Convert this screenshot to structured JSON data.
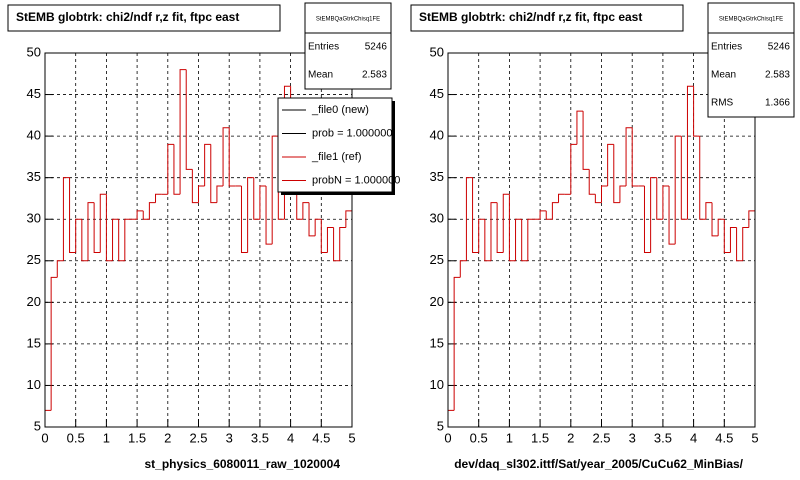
{
  "chart_data": [
    {
      "type": "histogram",
      "title": "StEMB globtrk: chi2/ndf r,z fit, ftpc east",
      "xlabel": "st_physics_6080011_raw_1020004",
      "bins": [
        0,
        0.1,
        0.2,
        0.3,
        0.4,
        0.5,
        0.6,
        0.7,
        0.8,
        0.9,
        1,
        1.1,
        1.2,
        1.3,
        1.4,
        1.5,
        1.6,
        1.7,
        1.8,
        1.9,
        2,
        2.1,
        2.2,
        2.3,
        2.4,
        2.5,
        2.6,
        2.7,
        2.8,
        2.9,
        3,
        3.1,
        3.2,
        3.3,
        3.4,
        3.5,
        3.6,
        3.7,
        3.8,
        3.9,
        4,
        4.1,
        4.2,
        4.3,
        4.4,
        4.5,
        4.6,
        4.7,
        4.8,
        4.9,
        5
      ],
      "values": [
        7,
        23,
        25,
        35,
        26,
        30,
        25,
        32,
        26,
        33,
        25,
        30,
        25,
        30,
        30,
        31,
        30,
        32,
        33,
        33,
        39,
        33,
        48,
        36,
        32,
        34,
        39,
        32,
        34,
        41,
        34,
        34,
        26,
        35,
        30,
        34,
        27,
        40,
        30,
        46,
        40,
        30,
        32,
        28,
        30,
        26,
        29,
        25,
        29,
        31
      ],
      "color": "#cc0000",
      "xlim": [
        0,
        5
      ],
      "ylim": [
        5,
        50
      ],
      "xticks": [
        0,
        0.5,
        1,
        1.5,
        2,
        2.5,
        3,
        3.5,
        4,
        4.5,
        5
      ],
      "yticks": [
        5,
        10,
        15,
        20,
        25,
        30,
        35,
        40,
        45,
        50
      ],
      "grid": true,
      "stats": {
        "name": "StEMBQaGtrkChisq1FE",
        "rows": [
          {
            "label": "Entries",
            "value": 5246
          },
          {
            "label": "Mean",
            "value": 2.583
          }
        ]
      },
      "legend": [
        {
          "label": "_file0 (new)",
          "color": "#000000"
        },
        {
          "label": "prob = 1.000000",
          "color": "#000000"
        },
        {
          "label": "_file1 (ref)",
          "color": "#cc0000"
        },
        {
          "label": "probN = 1.000000",
          "color": "#cc0000"
        }
      ]
    },
    {
      "type": "histogram",
      "title": "StEMB globtrk: chi2/ndf r,z fit, ftpc east",
      "xlabel": "dev/daq_sl302.ittf/Sat/year_2005/CuCu62_MinBias/",
      "bins": [
        0,
        0.1,
        0.2,
        0.3,
        0.4,
        0.5,
        0.6,
        0.7,
        0.8,
        0.9,
        1,
        1.1,
        1.2,
        1.3,
        1.4,
        1.5,
        1.6,
        1.7,
        1.8,
        1.9,
        2,
        2.1,
        2.2,
        2.3,
        2.4,
        2.5,
        2.6,
        2.7,
        2.8,
        2.9,
        3,
        3.1,
        3.2,
        3.3,
        3.4,
        3.5,
        3.6,
        3.7,
        3.8,
        3.9,
        4,
        4.1,
        4.2,
        4.3,
        4.4,
        4.5,
        4.6,
        4.7,
        4.8,
        4.9,
        5
      ],
      "values": [
        7,
        23,
        25,
        35,
        26,
        30,
        25,
        32,
        26,
        33,
        25,
        30,
        25,
        30,
        30,
        31,
        30,
        32,
        33,
        33,
        39,
        43,
        36,
        33,
        32,
        34,
        39,
        32,
        34,
        41,
        34,
        34,
        26,
        35,
        30,
        34,
        27,
        40,
        30,
        46,
        40,
        30,
        32,
        28,
        30,
        26,
        29,
        25,
        29,
        31
      ],
      "color": "#cc0000",
      "xlim": [
        0,
        5
      ],
      "ylim": [
        5,
        50
      ],
      "xticks": [
        0,
        0.5,
        1,
        1.5,
        2,
        2.5,
        3,
        3.5,
        4,
        4.5,
        5
      ],
      "yticks": [
        5,
        10,
        15,
        20,
        25,
        30,
        35,
        40,
        45,
        50
      ],
      "grid": true,
      "stats": {
        "name": "StEMBQaGtrkChisq1FE",
        "rows": [
          {
            "label": "Entries",
            "value": 5246
          },
          {
            "label": "Mean",
            "value": 2.583
          },
          {
            "label": "RMS",
            "value": 1.366
          }
        ]
      }
    }
  ]
}
